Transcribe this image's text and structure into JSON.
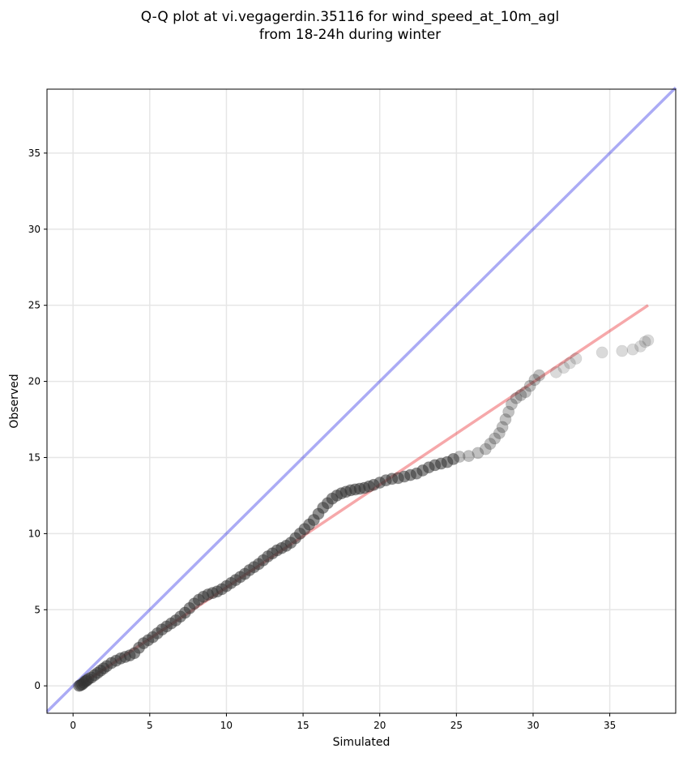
{
  "chart_data": {
    "type": "scatter",
    "title": [
      "Q-Q plot at vi.vegagerdin.35116 for wind_speed_at_10m_agl",
      "from 18-24h during winter"
    ],
    "xlabel": "Simulated",
    "ylabel": "Observed",
    "xlim": [
      -1.7,
      39.3
    ],
    "ylim": [
      -1.8,
      39.2
    ],
    "xticks": [
      0,
      5,
      10,
      15,
      20,
      25,
      30,
      35
    ],
    "yticks": [
      0,
      5,
      10,
      15,
      20,
      25,
      30,
      35
    ],
    "grid": true,
    "colors": {
      "points": "#333333",
      "identity_line": "#0000e0",
      "fit_line": "#e8262a",
      "grid": "#e6e6e6"
    },
    "identity_line": {
      "x": [
        -1.7,
        39.3
      ],
      "y": [
        -1.7,
        39.3
      ]
    },
    "fit_line": {
      "x": [
        0.4,
        37.5
      ],
      "y": [
        0.0,
        25.0
      ]
    },
    "quantile_points": [
      [
        0.4,
        0.0
      ],
      [
        0.5,
        0.05
      ],
      [
        0.6,
        0.1
      ],
      [
        0.7,
        0.2
      ],
      [
        0.8,
        0.3
      ],
      [
        0.9,
        0.35
      ],
      [
        1.0,
        0.45
      ],
      [
        1.2,
        0.55
      ],
      [
        1.4,
        0.7
      ],
      [
        1.6,
        0.85
      ],
      [
        1.8,
        1.0
      ],
      [
        2.0,
        1.15
      ],
      [
        2.2,
        1.3
      ],
      [
        2.5,
        1.5
      ],
      [
        2.8,
        1.65
      ],
      [
        3.1,
        1.8
      ],
      [
        3.4,
        1.9
      ],
      [
        3.7,
        2.0
      ],
      [
        4.0,
        2.15
      ],
      [
        4.3,
        2.5
      ],
      [
        4.6,
        2.8
      ],
      [
        4.9,
        3.0
      ],
      [
        5.2,
        3.2
      ],
      [
        5.5,
        3.45
      ],
      [
        5.8,
        3.7
      ],
      [
        6.1,
        3.9
      ],
      [
        6.4,
        4.1
      ],
      [
        6.7,
        4.3
      ],
      [
        7.0,
        4.55
      ],
      [
        7.3,
        4.8
      ],
      [
        7.6,
        5.1
      ],
      [
        7.9,
        5.4
      ],
      [
        8.2,
        5.65
      ],
      [
        8.5,
        5.85
      ],
      [
        8.8,
        6.0
      ],
      [
        9.1,
        6.1
      ],
      [
        9.4,
        6.2
      ],
      [
        9.7,
        6.35
      ],
      [
        10.0,
        6.55
      ],
      [
        10.3,
        6.75
      ],
      [
        10.6,
        6.95
      ],
      [
        10.9,
        7.15
      ],
      [
        11.2,
        7.35
      ],
      [
        11.5,
        7.6
      ],
      [
        11.8,
        7.8
      ],
      [
        12.1,
        8.0
      ],
      [
        12.4,
        8.25
      ],
      [
        12.7,
        8.5
      ],
      [
        13.0,
        8.7
      ],
      [
        13.3,
        8.9
      ],
      [
        13.6,
        9.05
      ],
      [
        13.9,
        9.2
      ],
      [
        14.2,
        9.4
      ],
      [
        14.5,
        9.7
      ],
      [
        14.8,
        10.0
      ],
      [
        15.1,
        10.3
      ],
      [
        15.4,
        10.6
      ],
      [
        15.7,
        10.9
      ],
      [
        16.0,
        11.3
      ],
      [
        16.3,
        11.7
      ],
      [
        16.6,
        12.0
      ],
      [
        16.9,
        12.3
      ],
      [
        17.2,
        12.5
      ],
      [
        17.5,
        12.65
      ],
      [
        17.8,
        12.75
      ],
      [
        18.1,
        12.85
      ],
      [
        18.4,
        12.9
      ],
      [
        18.7,
        12.95
      ],
      [
        19.0,
        13.0
      ],
      [
        19.3,
        13.1
      ],
      [
        19.6,
        13.2
      ],
      [
        20.0,
        13.35
      ],
      [
        20.4,
        13.5
      ],
      [
        20.8,
        13.6
      ],
      [
        21.2,
        13.65
      ],
      [
        21.6,
        13.75
      ],
      [
        22.0,
        13.85
      ],
      [
        22.4,
        13.95
      ],
      [
        22.8,
        14.15
      ],
      [
        23.2,
        14.35
      ],
      [
        23.6,
        14.5
      ],
      [
        24.0,
        14.6
      ],
      [
        24.4,
        14.7
      ],
      [
        24.8,
        14.9
      ],
      [
        25.2,
        15.05
      ],
      [
        25.8,
        15.1
      ],
      [
        26.4,
        15.3
      ],
      [
        26.9,
        15.55
      ],
      [
        27.2,
        15.9
      ],
      [
        27.5,
        16.25
      ],
      [
        27.8,
        16.6
      ],
      [
        28.0,
        17.0
      ],
      [
        28.2,
        17.5
      ],
      [
        28.4,
        18.0
      ],
      [
        28.6,
        18.5
      ],
      [
        28.9,
        18.9
      ],
      [
        29.2,
        19.1
      ],
      [
        29.5,
        19.3
      ],
      [
        29.8,
        19.7
      ],
      [
        30.1,
        20.1
      ],
      [
        30.4,
        20.4
      ],
      [
        31.5,
        20.6
      ],
      [
        32.0,
        20.9
      ],
      [
        32.4,
        21.2
      ],
      [
        32.8,
        21.5
      ],
      [
        34.5,
        21.9
      ],
      [
        35.8,
        22.0
      ],
      [
        36.5,
        22.1
      ],
      [
        37.0,
        22.3
      ],
      [
        37.3,
        22.6
      ],
      [
        37.5,
        22.7
      ]
    ]
  }
}
